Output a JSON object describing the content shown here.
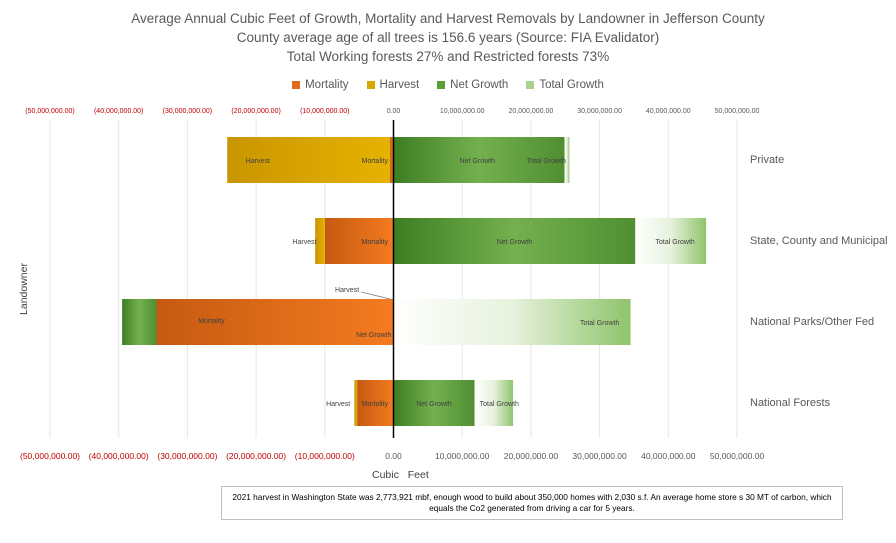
{
  "titles": [
    "Average Annual Cubic Feet of Growth, Mortality and Harvest Removals by Landowner in Jefferson County",
    "County average age of all trees is 156.6 years (Source: FIA Evalidator)",
    "Total Working forests 27% and Restricted forests 73%"
  ],
  "legend": [
    {
      "name": "Mortality",
      "color": "#e06a1a",
      "icon": "square"
    },
    {
      "name": "Harvest",
      "color": "#d9a800",
      "icon": "square"
    },
    {
      "name": "Net Growth",
      "color": "#5a9e3a",
      "icon": "square"
    },
    {
      "name": "Total Growth",
      "color": "#a9d18e",
      "icon": "square"
    }
  ],
  "axis": {
    "ylabel": "Landowner",
    "xlabel": "Cubic Feet",
    "top_ticks": [
      "(50,000,000.00)",
      "(40,000,000.00)",
      "(30,000,000.00)",
      "(20,000,000.00)",
      "(10,000,000.00)",
      "0.00",
      "10,000,000.00",
      "20,000,000.00",
      "30,000,000.00",
      "40,000,000.00",
      "50,000,000.00"
    ],
    "bottom_ticks": [
      "(50,000,000.00)",
      "(40,000,000.00)",
      "(30,000,000.00)",
      "(20,000,000.00)",
      "(10,000,000.00)",
      "0.00",
      "10,000,000.00",
      "20,000,000.00",
      "30,000,000.00",
      "40,000,000.00",
      "50,000,000.00"
    ],
    "neg_tick_color": "#c00000"
  },
  "chart_data": {
    "type": "bar",
    "orientation": "horizontal",
    "stacked": true,
    "title": "Average Annual Cubic Feet of Growth, Mortality and Harvest Removals by Landowner in Jefferson County",
    "ylabel": "Landowner",
    "xlabel": "Cubic Feet",
    "xlim": [
      -50000000,
      50000000
    ],
    "gridlines": true,
    "legend_position": "top",
    "categories": [
      "Private",
      "State, County and Municipal",
      "National Parks/Other Fed",
      "National Forests"
    ],
    "series": [
      {
        "name": "Mortality",
        "values": [
          -500000,
          -10000000,
          -34500000,
          -5300000
        ]
      },
      {
        "name": "Harvest",
        "values": [
          -23700000,
          -1400000,
          0,
          -400000
        ]
      },
      {
        "name": "Net Growth",
        "values": [
          24900000,
          35200000,
          -5000000,
          11800000
        ]
      },
      {
        "name": "Total Growth",
        "values": [
          700000,
          10300000,
          34500000,
          5600000
        ]
      }
    ]
  },
  "bar_labels": [
    {
      "category": "Private",
      "labels": [
        "Harvest",
        "Mortality",
        "Net Growth",
        "Total Growth"
      ]
    },
    {
      "category": "State, County and Municipal",
      "labels": [
        "Harvest",
        "Mortality",
        "Net Growth",
        "Total Growth"
      ]
    },
    {
      "category": "National Parks/Other Fed",
      "labels": [
        "Harvest",
        "Mortality",
        "Net Growth",
        "Total Growth"
      ]
    },
    {
      "category": "National Forests",
      "labels": [
        "Harvest",
        "Mortality",
        "Net Growth",
        "Total Growth"
      ]
    }
  ],
  "footnote": "2021 harvest in Washington State was 2,773,921 mbf, enough wood to build about 350,000 homes with 2,030 s.f. An average home store s 30 MT of carbon, which equals the Co2 generated from driving a car for 5 years."
}
